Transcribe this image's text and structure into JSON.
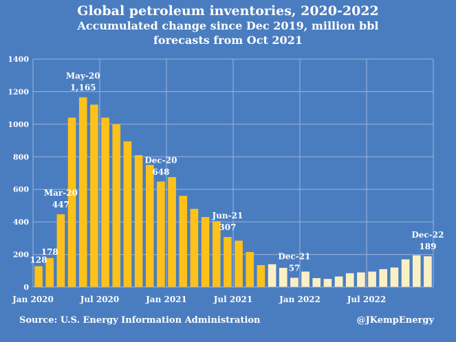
{
  "chart_data": {
    "type": "bar",
    "title": "Global petroleum inventories, 2020-2022",
    "subtitle_1": "Accumulated change since Dec 2019, million bbl",
    "subtitle_2": "forecasts from Oct 2021",
    "xlabel": "",
    "ylabel": "",
    "ylim": [
      0,
      1400
    ],
    "yticks": [
      0,
      200,
      400,
      600,
      800,
      1000,
      1200,
      1400
    ],
    "grid": true,
    "legend": "none",
    "categories": [
      "Jan-20",
      "Feb-20",
      "Mar-20",
      "Apr-20",
      "May-20",
      "Jun-20",
      "Jul-20",
      "Aug-20",
      "Sep-20",
      "Oct-20",
      "Nov-20",
      "Dec-20",
      "Jan-21",
      "Feb-21",
      "Mar-21",
      "Apr-21",
      "May-21",
      "Jun-21",
      "Jul-21",
      "Aug-21",
      "Sep-21",
      "Oct-21",
      "Nov-21",
      "Dec-21",
      "Jan-22",
      "Feb-22",
      "Mar-22",
      "Apr-22",
      "May-22",
      "Jun-22",
      "Jul-22",
      "Aug-22",
      "Sep-22",
      "Oct-22",
      "Nov-22",
      "Dec-22"
    ],
    "values": [
      128,
      178,
      447,
      1040,
      1165,
      1120,
      1040,
      1000,
      895,
      810,
      750,
      648,
      675,
      560,
      480,
      430,
      405,
      307,
      285,
      215,
      135,
      140,
      118,
      57,
      95,
      55,
      50,
      65,
      85,
      90,
      95,
      110,
      120,
      170,
      195,
      189
    ],
    "forecast_start_index": 21,
    "x_tick_labels": [
      {
        "index": 0,
        "label": "Jan 2020"
      },
      {
        "index": 6,
        "label": "Jul 2020"
      },
      {
        "index": 12,
        "label": "Jan 2021"
      },
      {
        "index": 18,
        "label": "Jul 2021"
      },
      {
        "index": 24,
        "label": "Jan 2022"
      },
      {
        "index": 30,
        "label": "Jul 2022"
      }
    ],
    "annotations": [
      {
        "index": 0,
        "value": "128"
      },
      {
        "index": 1,
        "value": "178"
      },
      {
        "index": 2,
        "label": "Mar-20",
        "value": "447"
      },
      {
        "index": 4,
        "label": "May-20",
        "value": "1,165"
      },
      {
        "index": 11,
        "label": "Dec-20",
        "value": "648"
      },
      {
        "index": 17,
        "label": "Jun-21",
        "value": "307"
      },
      {
        "index": 23,
        "label": "Dec-21",
        "value": "57"
      },
      {
        "index": 35,
        "label": "Dec-22",
        "value": "189"
      }
    ],
    "colors": {
      "background": "#4a7dc0",
      "actual": "#fdc11a",
      "forecast": "#fbf0c4",
      "grid": "#9bb5dc"
    }
  },
  "footer": {
    "source": "Source: U.S. Energy Information Administration",
    "handle": "@JKempEnergy"
  }
}
